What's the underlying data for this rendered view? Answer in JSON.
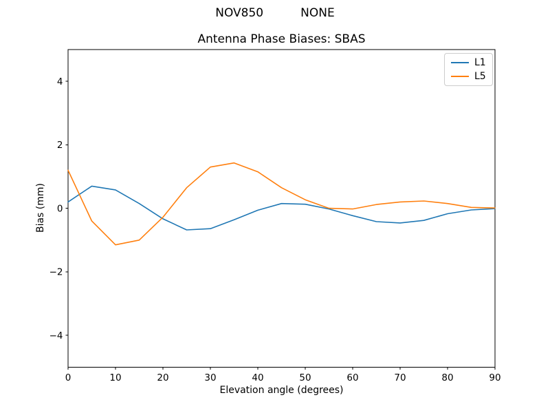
{
  "figure": {
    "suptitle": "NOV850          NONE",
    "background_color": "#ffffff",
    "axes_edge_color": "#000000"
  },
  "chart_data": {
    "type": "line",
    "title": "Antenna Phase Biases: SBAS",
    "xlabel": "Elevation angle (degrees)",
    "ylabel": "Bias (mm)",
    "xlim": [
      0,
      90
    ],
    "ylim": [
      -5,
      5
    ],
    "xticks": [
      0,
      10,
      20,
      30,
      40,
      50,
      60,
      70,
      80,
      90
    ],
    "yticks": [
      -4,
      -2,
      0,
      2,
      4
    ],
    "grid": false,
    "legend_position": "upper right",
    "x": [
      0,
      5,
      10,
      15,
      20,
      25,
      30,
      35,
      40,
      45,
      50,
      55,
      60,
      65,
      70,
      75,
      80,
      85,
      90
    ],
    "series": [
      {
        "name": "L1",
        "color": "#1f77b4",
        "values": [
          0.2,
          0.7,
          0.58,
          0.15,
          -0.33,
          -0.68,
          -0.64,
          -0.36,
          -0.06,
          0.15,
          0.13,
          -0.02,
          -0.23,
          -0.42,
          -0.46,
          -0.38,
          -0.17,
          -0.05,
          -0.01
        ]
      },
      {
        "name": "L5",
        "color": "#ff7f0e",
        "values": [
          1.2,
          -0.4,
          -1.15,
          -1.0,
          -0.28,
          0.65,
          1.3,
          1.43,
          1.15,
          0.65,
          0.27,
          0.0,
          -0.02,
          0.12,
          0.2,
          0.23,
          0.15,
          0.03,
          0.01
        ]
      }
    ]
  }
}
